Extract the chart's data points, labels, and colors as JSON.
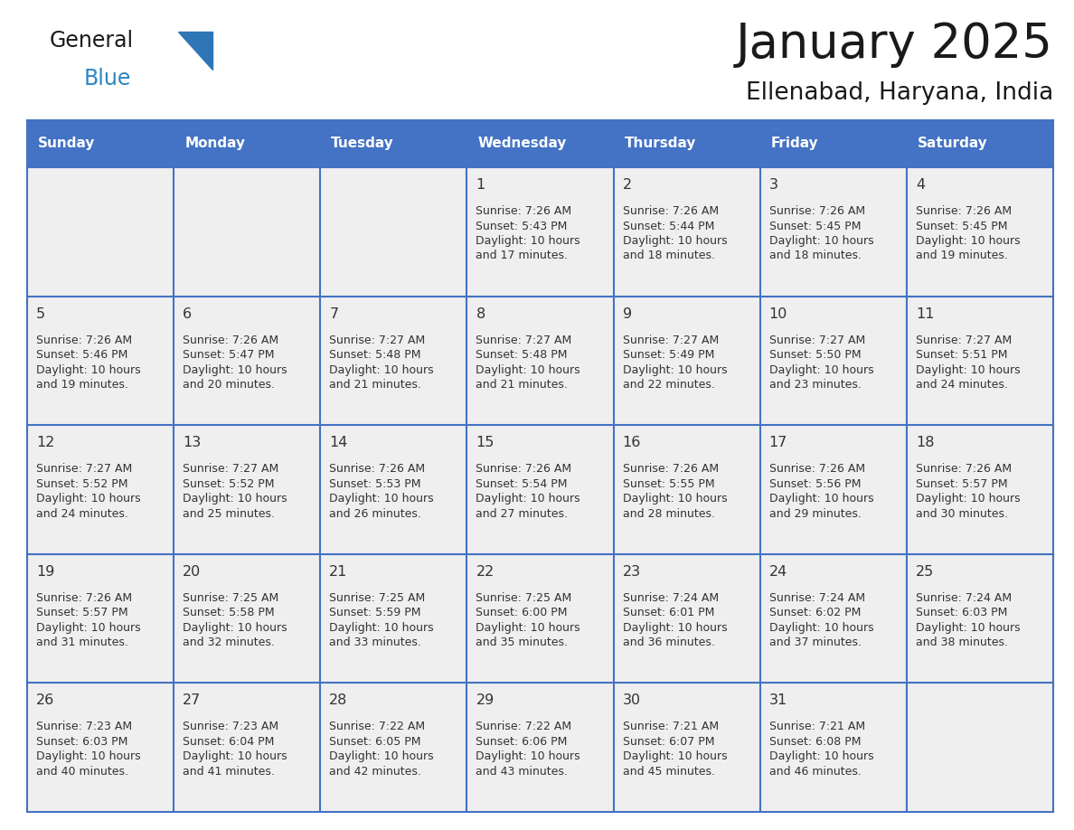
{
  "title": "January 2025",
  "subtitle": "Ellenabad, Haryana, India",
  "days_of_week": [
    "Sunday",
    "Monday",
    "Tuesday",
    "Wednesday",
    "Thursday",
    "Friday",
    "Saturday"
  ],
  "header_bg_color": "#4472C4",
  "header_text_color": "#FFFFFF",
  "cell_bg_color": "#EFEFEF",
  "grid_line_color": "#4472C4",
  "text_color": "#333333",
  "title_color": "#1a1a1a",
  "calendar_data": [
    [
      null,
      null,
      null,
      {
        "day": 1,
        "sunrise": "7:26 AM",
        "sunset": "5:43 PM",
        "daylight": "10 hours and 17 minutes."
      },
      {
        "day": 2,
        "sunrise": "7:26 AM",
        "sunset": "5:44 PM",
        "daylight": "10 hours and 18 minutes."
      },
      {
        "day": 3,
        "sunrise": "7:26 AM",
        "sunset": "5:45 PM",
        "daylight": "10 hours and 18 minutes."
      },
      {
        "day": 4,
        "sunrise": "7:26 AM",
        "sunset": "5:45 PM",
        "daylight": "10 hours and 19 minutes."
      }
    ],
    [
      {
        "day": 5,
        "sunrise": "7:26 AM",
        "sunset": "5:46 PM",
        "daylight": "10 hours and 19 minutes."
      },
      {
        "day": 6,
        "sunrise": "7:26 AM",
        "sunset": "5:47 PM",
        "daylight": "10 hours and 20 minutes."
      },
      {
        "day": 7,
        "sunrise": "7:27 AM",
        "sunset": "5:48 PM",
        "daylight": "10 hours and 21 minutes."
      },
      {
        "day": 8,
        "sunrise": "7:27 AM",
        "sunset": "5:48 PM",
        "daylight": "10 hours and 21 minutes."
      },
      {
        "day": 9,
        "sunrise": "7:27 AM",
        "sunset": "5:49 PM",
        "daylight": "10 hours and 22 minutes."
      },
      {
        "day": 10,
        "sunrise": "7:27 AM",
        "sunset": "5:50 PM",
        "daylight": "10 hours and 23 minutes."
      },
      {
        "day": 11,
        "sunrise": "7:27 AM",
        "sunset": "5:51 PM",
        "daylight": "10 hours and 24 minutes."
      }
    ],
    [
      {
        "day": 12,
        "sunrise": "7:27 AM",
        "sunset": "5:52 PM",
        "daylight": "10 hours and 24 minutes."
      },
      {
        "day": 13,
        "sunrise": "7:27 AM",
        "sunset": "5:52 PM",
        "daylight": "10 hours and 25 minutes."
      },
      {
        "day": 14,
        "sunrise": "7:26 AM",
        "sunset": "5:53 PM",
        "daylight": "10 hours and 26 minutes."
      },
      {
        "day": 15,
        "sunrise": "7:26 AM",
        "sunset": "5:54 PM",
        "daylight": "10 hours and 27 minutes."
      },
      {
        "day": 16,
        "sunrise": "7:26 AM",
        "sunset": "5:55 PM",
        "daylight": "10 hours and 28 minutes."
      },
      {
        "day": 17,
        "sunrise": "7:26 AM",
        "sunset": "5:56 PM",
        "daylight": "10 hours and 29 minutes."
      },
      {
        "day": 18,
        "sunrise": "7:26 AM",
        "sunset": "5:57 PM",
        "daylight": "10 hours and 30 minutes."
      }
    ],
    [
      {
        "day": 19,
        "sunrise": "7:26 AM",
        "sunset": "5:57 PM",
        "daylight": "10 hours and 31 minutes."
      },
      {
        "day": 20,
        "sunrise": "7:25 AM",
        "sunset": "5:58 PM",
        "daylight": "10 hours and 32 minutes."
      },
      {
        "day": 21,
        "sunrise": "7:25 AM",
        "sunset": "5:59 PM",
        "daylight": "10 hours and 33 minutes."
      },
      {
        "day": 22,
        "sunrise": "7:25 AM",
        "sunset": "6:00 PM",
        "daylight": "10 hours and 35 minutes."
      },
      {
        "day": 23,
        "sunrise": "7:24 AM",
        "sunset": "6:01 PM",
        "daylight": "10 hours and 36 minutes."
      },
      {
        "day": 24,
        "sunrise": "7:24 AM",
        "sunset": "6:02 PM",
        "daylight": "10 hours and 37 minutes."
      },
      {
        "day": 25,
        "sunrise": "7:24 AM",
        "sunset": "6:03 PM",
        "daylight": "10 hours and 38 minutes."
      }
    ],
    [
      {
        "day": 26,
        "sunrise": "7:23 AM",
        "sunset": "6:03 PM",
        "daylight": "10 hours and 40 minutes."
      },
      {
        "day": 27,
        "sunrise": "7:23 AM",
        "sunset": "6:04 PM",
        "daylight": "10 hours and 41 minutes."
      },
      {
        "day": 28,
        "sunrise": "7:22 AM",
        "sunset": "6:05 PM",
        "daylight": "10 hours and 42 minutes."
      },
      {
        "day": 29,
        "sunrise": "7:22 AM",
        "sunset": "6:06 PM",
        "daylight": "10 hours and 43 minutes."
      },
      {
        "day": 30,
        "sunrise": "7:21 AM",
        "sunset": "6:07 PM",
        "daylight": "10 hours and 45 minutes."
      },
      {
        "day": 31,
        "sunrise": "7:21 AM",
        "sunset": "6:08 PM",
        "daylight": "10 hours and 46 minutes."
      },
      null
    ]
  ]
}
